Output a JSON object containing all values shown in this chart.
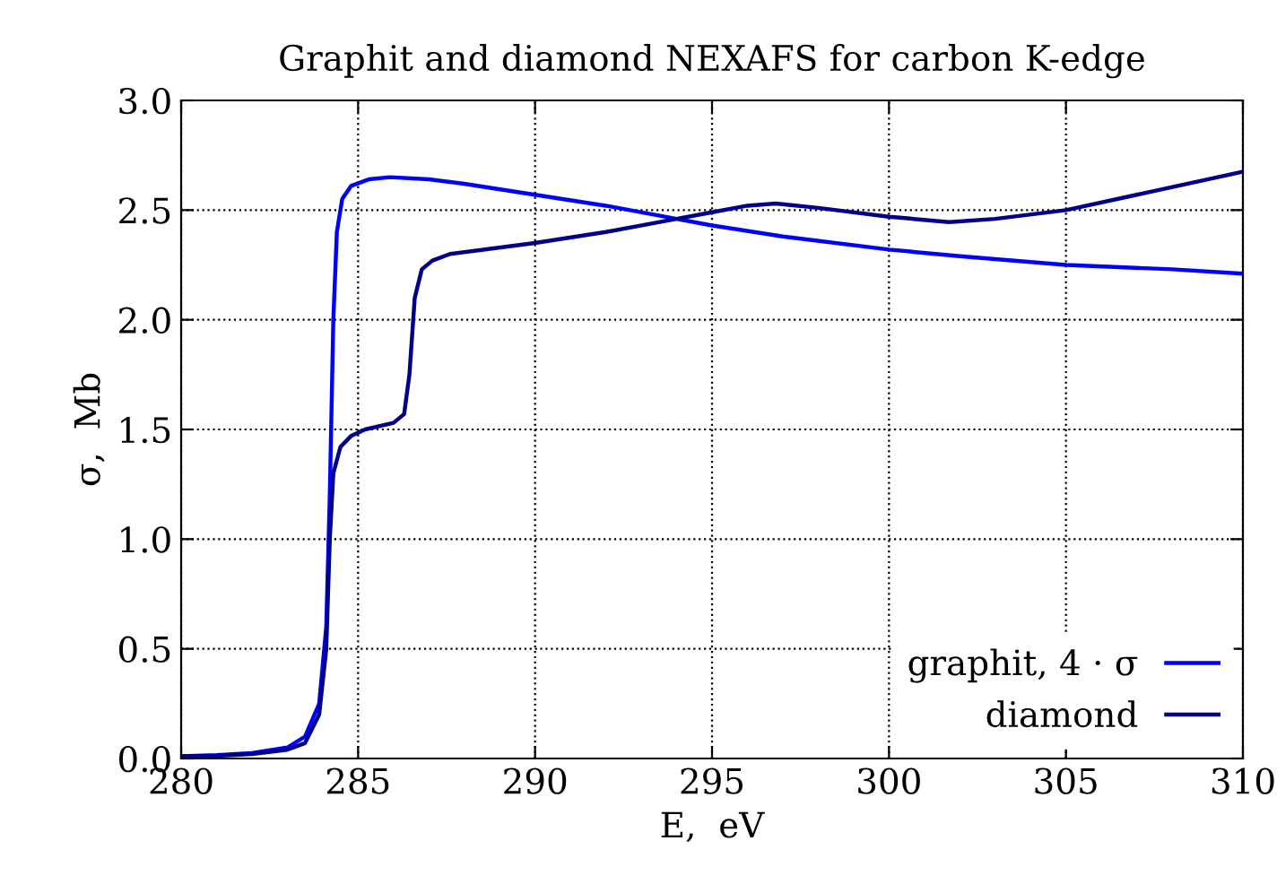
{
  "chart_data": {
    "type": "line",
    "title": "Graphit and diamond NEXAFS for carbon K-edge",
    "xlabel": "E,  eV",
    "ylabel": "σ,  Mb",
    "xlim": [
      280,
      310
    ],
    "xticks": [
      280,
      285,
      290,
      295,
      300,
      305,
      310
    ],
    "ylim": [
      0,
      3
    ],
    "yticks": [
      {
        "value": 0,
        "label": "0.0"
      },
      {
        "value": 0.5,
        "label": "0.5"
      },
      {
        "value": 1,
        "label": "1.0"
      },
      {
        "value": 1.5,
        "label": "1.5"
      },
      {
        "value": 2,
        "label": "2.0"
      },
      {
        "value": 2.5,
        "label": "2.5"
      },
      {
        "value": 3,
        "label": "3.0"
      }
    ],
    "grid": true,
    "legend": "bottom right",
    "line_style": "solid",
    "marker": "none",
    "series": [
      {
        "name": "graphit, 4 · σ",
        "color": "#0000ff",
        "x": [
          280,
          281,
          282,
          283,
          283.5,
          283.9,
          284.1,
          284.2,
          284.3,
          284.4,
          284.55,
          284.8,
          285.3,
          285.9,
          287,
          288,
          290,
          292,
          294,
          295,
          297,
          300,
          302,
          305,
          308,
          310
        ],
        "values": [
          0.01,
          0.015,
          0.025,
          0.05,
          0.1,
          0.25,
          0.6,
          1.2,
          2.0,
          2.4,
          2.55,
          2.61,
          2.64,
          2.65,
          2.64,
          2.62,
          2.57,
          2.52,
          2.46,
          2.43,
          2.38,
          2.32,
          2.29,
          2.25,
          2.23,
          2.21
        ]
      },
      {
        "name": "diamond",
        "color": "#00008b",
        "x": [
          280,
          281,
          282,
          283,
          283.5,
          283.9,
          284.1,
          284.2,
          284.3,
          284.5,
          284.8,
          285.2,
          286,
          286.3,
          286.45,
          286.6,
          286.8,
          287.1,
          287.6,
          290,
          292,
          294,
          295,
          296,
          296.8,
          298,
          300,
          301.7,
          303,
          305,
          307,
          310
        ],
        "values": [
          0.01,
          0.012,
          0.02,
          0.04,
          0.07,
          0.2,
          0.5,
          1.0,
          1.3,
          1.42,
          1.47,
          1.5,
          1.53,
          1.57,
          1.75,
          2.1,
          2.23,
          2.27,
          2.3,
          2.35,
          2.4,
          2.46,
          2.49,
          2.52,
          2.53,
          2.51,
          2.47,
          2.445,
          2.46,
          2.5,
          2.57,
          2.675
        ]
      }
    ]
  }
}
